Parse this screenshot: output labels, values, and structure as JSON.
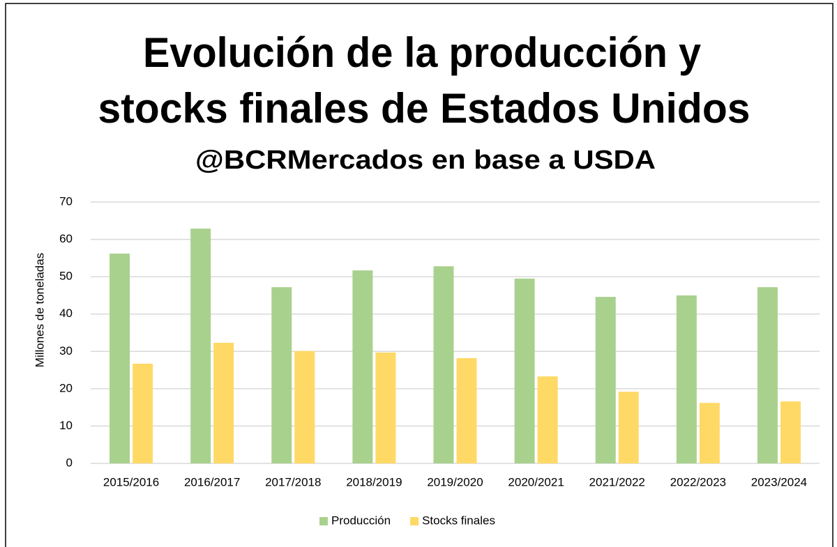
{
  "chart_data": {
    "type": "bar",
    "title": [
      "Evolución de la producción y",
      "stocks finales de Estados Unidos"
    ],
    "subtitle": "@BCRMercados en base a USDA",
    "y_label": "Millones de toneladas",
    "categories": [
      "2015/2016",
      "2016/2017",
      "2017/2018",
      "2018/2019",
      "2019/2020",
      "2020/2021",
      "2021/2022",
      "2022/2023",
      "2023/2024"
    ],
    "series": [
      {
        "name": "Producción",
        "color": "#a9d18e",
        "values": [
          56.2,
          62.9,
          47.2,
          51.7,
          52.8,
          49.5,
          44.6,
          45.0,
          47.2
        ]
      },
      {
        "name": "Stocks finales",
        "color": "#ffd966",
        "values": [
          26.7,
          32.3,
          30.1,
          29.7,
          28.2,
          23.3,
          19.2,
          16.2,
          16.6
        ]
      }
    ],
    "ylim": [
      0,
      70
    ],
    "yticks": [
      0,
      10,
      20,
      30,
      40,
      50,
      60,
      70
    ],
    "grid": true,
    "legend": "bottom"
  }
}
